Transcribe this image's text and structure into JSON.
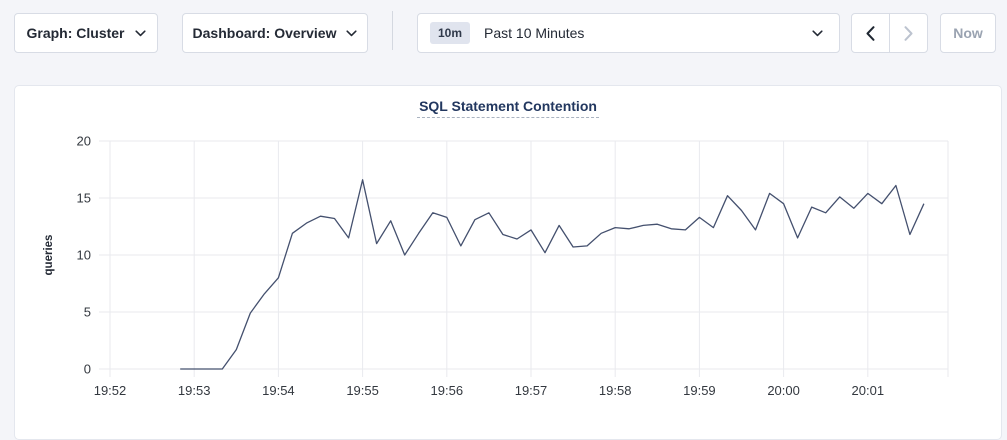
{
  "toolbar": {
    "graph_dropdown": {
      "label": "Graph: Cluster"
    },
    "dashboard_dropdown": {
      "label": "Dashboard: Overview"
    },
    "time_selector": {
      "badge": "10m",
      "label": "Past 10 Minutes"
    },
    "prev_button": {
      "enabled": true
    },
    "next_button": {
      "enabled": false
    },
    "now_button": {
      "label": "Now",
      "enabled": false
    }
  },
  "colors": {
    "page_bg": "#f4f5f9",
    "card_bg": "#ffffff",
    "button_border": "#d8dce5",
    "text_primary": "#242a35",
    "text_disabled": "#9aa3b1",
    "title_blue": "#22375f"
  },
  "chart_data": {
    "type": "line",
    "title": "SQL Statement Contention",
    "xlabel": "",
    "ylabel": "queries",
    "ylim": [
      0,
      20
    ],
    "yticks": [
      0,
      5,
      10,
      15,
      20
    ],
    "grid": true,
    "legend_position": "none",
    "line_color": "#44506e",
    "grid_color": "#e9eaee",
    "x_axis": {
      "tick_labels": [
        "19:52",
        "19:53",
        "19:54",
        "19:55",
        "19:56",
        "19:57",
        "19:58",
        "19:59",
        "20:00",
        "20:01"
      ],
      "tick_interval_seconds": 60,
      "first_sample_offset_seconds": 50
    },
    "start_time": "19:52:50",
    "end_time": "20:01:40",
    "interval_seconds": 10,
    "series": [
      {
        "name": "SQL Statement Contention",
        "values": [
          0,
          0,
          0,
          0,
          1.7,
          4.9,
          6.6,
          8.0,
          11.9,
          12.8,
          13.4,
          13.2,
          11.5,
          16.6,
          11.0,
          13.0,
          10.0,
          11.9,
          13.7,
          13.3,
          10.8,
          13.1,
          13.7,
          11.8,
          11.4,
          12.2,
          10.2,
          12.6,
          10.7,
          10.8,
          11.9,
          12.4,
          12.3,
          12.6,
          12.7,
          12.3,
          12.2,
          13.3,
          12.4,
          15.2,
          13.9,
          12.2,
          15.4,
          14.5,
          11.5,
          14.2,
          13.7,
          15.1,
          14.1,
          15.4,
          14.5,
          16.1,
          11.8,
          14.5
        ]
      }
    ]
  }
}
